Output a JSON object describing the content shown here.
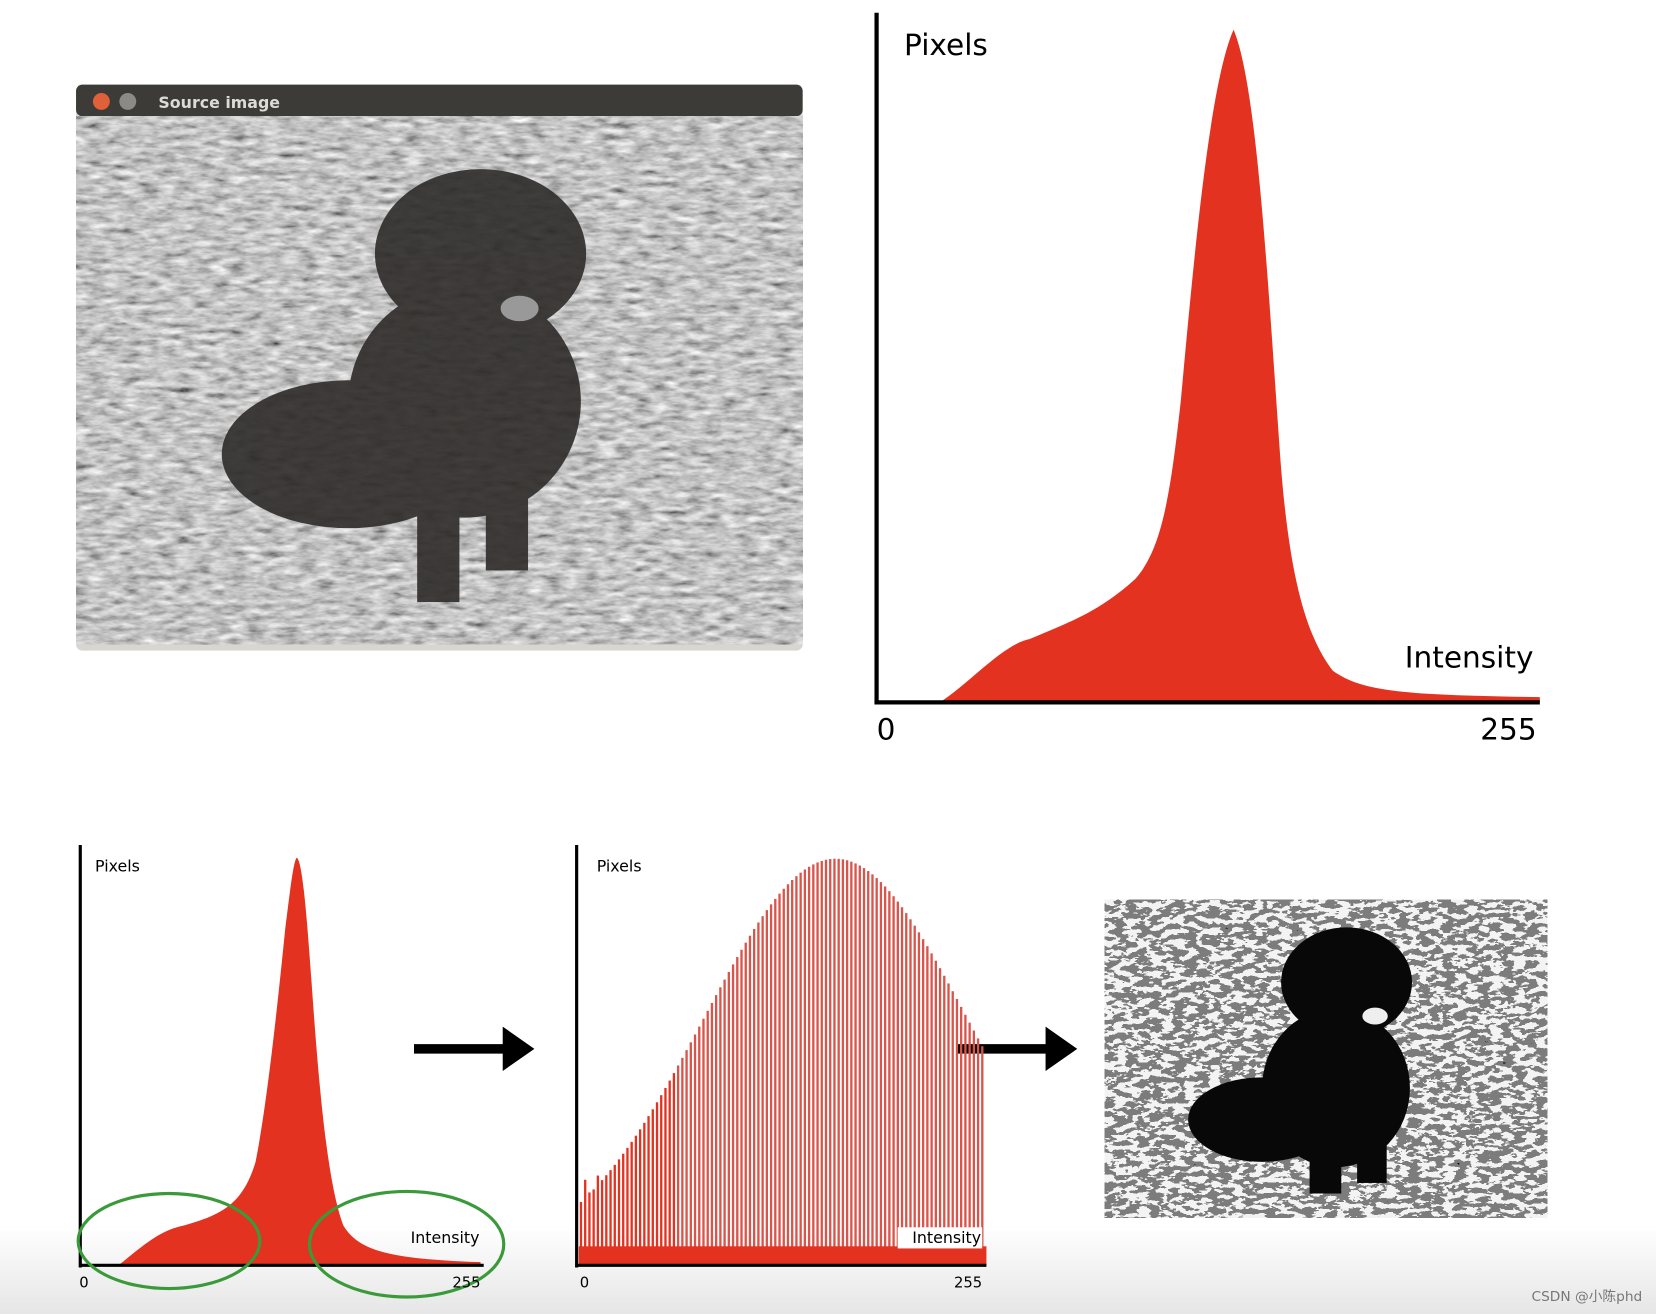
{
  "source_window": {
    "title": "Source image"
  },
  "histogram": {
    "y_label": "Pixels",
    "x_label": "Intensity",
    "x_min": "0",
    "x_max": "255"
  },
  "small_histogram": {
    "y_label": "Pixels",
    "x_label": "Intensity",
    "x_min": "0",
    "x_max": "255"
  },
  "equalized_histogram": {
    "y_label": "Pixels",
    "x_label": "Intensity",
    "x_min": "0",
    "x_max": "255"
  },
  "watermark": "CSDN @小陈phd"
}
